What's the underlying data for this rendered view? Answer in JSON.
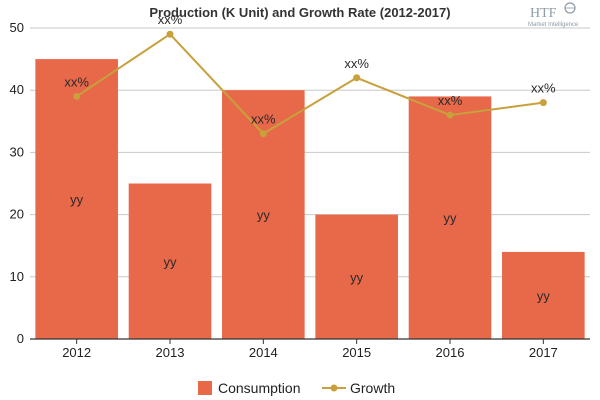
{
  "chart_data": {
    "type": "bar",
    "title": "Production (K Unit) and Growth Rate (2012-2017)",
    "categories": [
      "2012",
      "2013",
      "2014",
      "2015",
      "2016",
      "2017"
    ],
    "series": [
      {
        "name": "Consumption",
        "type": "bar",
        "values": [
          45,
          25,
          40,
          20,
          39,
          14
        ],
        "data_labels": [
          "yy",
          "yy",
          "yy",
          "yy",
          "yy",
          "yy"
        ]
      },
      {
        "name": "Growth",
        "type": "line",
        "values": [
          39,
          49,
          33,
          42,
          36,
          38
        ],
        "data_labels": [
          "xx%",
          "xx%",
          "xx%",
          "xx%",
          "xx%",
          "xx%"
        ]
      }
    ],
    "yticks": [
      "0",
      "10",
      "20",
      "30",
      "40",
      "50"
    ],
    "ylim": [
      0,
      50
    ],
    "grid": true,
    "legend_position": "bottom",
    "colors": {
      "bar": "#e8684a",
      "line": "#c8a03c",
      "grid": "#c8c8c8",
      "axis": "#333333"
    }
  },
  "logo": {
    "text": "HTF",
    "subtext": "Market Intelligence"
  }
}
